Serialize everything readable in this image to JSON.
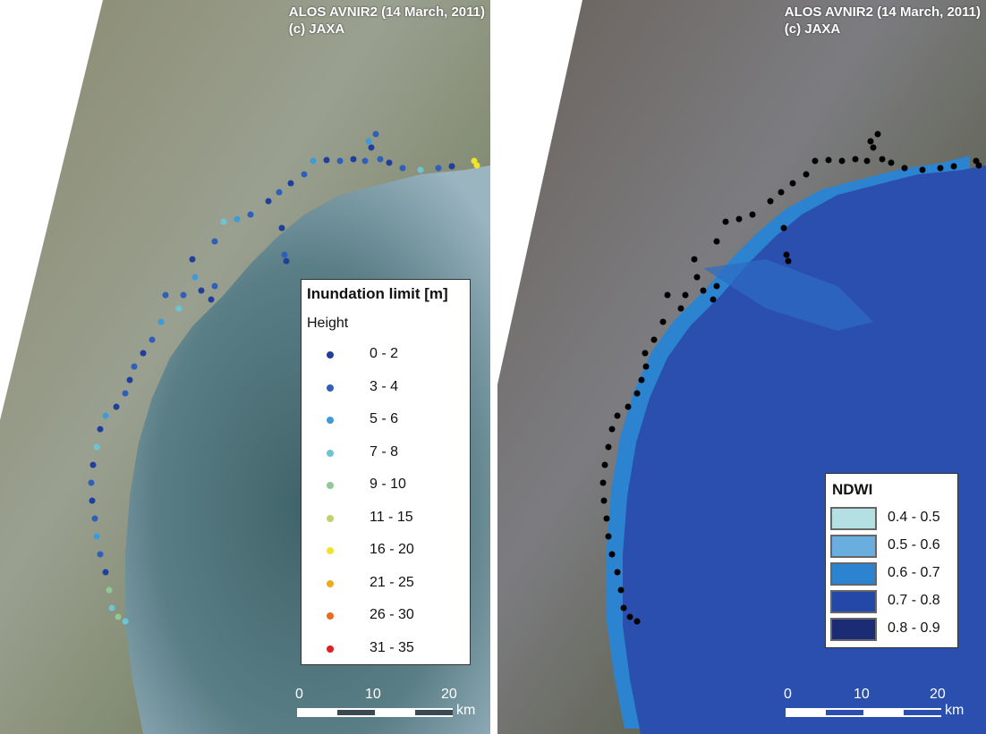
{
  "left_map": {
    "credit_line1": "ALOS AVNIR2 (14 March, 2011)",
    "credit_line2": "(c) JAXA",
    "legend": {
      "title": "Inundation limit [m]",
      "subtitle": "Height",
      "items": [
        {
          "label": "0 - 2",
          "color": "#1f3f9a"
        },
        {
          "label": "3 - 4",
          "color": "#2f5fb8"
        },
        {
          "label": "5 - 6",
          "color": "#3f9ad8"
        },
        {
          "label": "7 - 8",
          "color": "#6cc4d4"
        },
        {
          "label": "9 - 10",
          "color": "#90c898"
        },
        {
          "label": "11 - 15",
          "color": "#bcd46a"
        },
        {
          "label": "16 - 20",
          "color": "#f0e42a"
        },
        {
          "label": "21 - 25",
          "color": "#f0a820"
        },
        {
          "label": "26 - 30",
          "color": "#ec6a1e"
        },
        {
          "label": "31 - 35",
          "color": "#e21e1e"
        }
      ]
    },
    "scale": {
      "labels": [
        "0",
        "10",
        "20"
      ],
      "unit": "km"
    }
  },
  "right_map": {
    "credit_line1": "ALOS AVNIR2 (14 March, 2011)",
    "credit_line2": "(c) JAXA",
    "legend": {
      "title": "NDWI",
      "items": [
        {
          "label": "0.4 - 0.5",
          "color": "#b4e0e4"
        },
        {
          "label": "0.5 - 0.6",
          "color": "#6aaee0"
        },
        {
          "label": "0.6 - 0.7",
          "color": "#2c84d0"
        },
        {
          "label": "0.7 - 0.8",
          "color": "#2348a8"
        },
        {
          "label": "0.8 - 0.9",
          "color": "#1c2c74"
        }
      ]
    },
    "scale": {
      "labels": [
        "0",
        "10",
        "20"
      ],
      "unit": "km"
    }
  },
  "colors": {
    "sea_left": "#50707a",
    "sea_right": "#2a4fae",
    "land": "#7d8466",
    "points_right": "#000000"
  }
}
